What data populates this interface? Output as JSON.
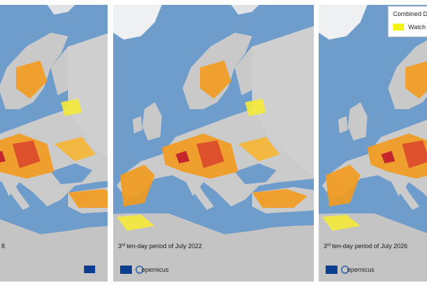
{
  "panels": [
    {
      "label": "8"
    },
    {
      "label_number": "3",
      "label_suffix": "rd",
      "label_text": "ten-day period of July 2022",
      "logo_text": "opernicus"
    },
    {
      "label_number": "3",
      "label_suffix": "rd",
      "label_text": "ten-day period of July 2026",
      "logo_text": "opernicus"
    }
  ],
  "legend": {
    "title": "Combined D",
    "items": [
      "Watch"
    ]
  }
}
